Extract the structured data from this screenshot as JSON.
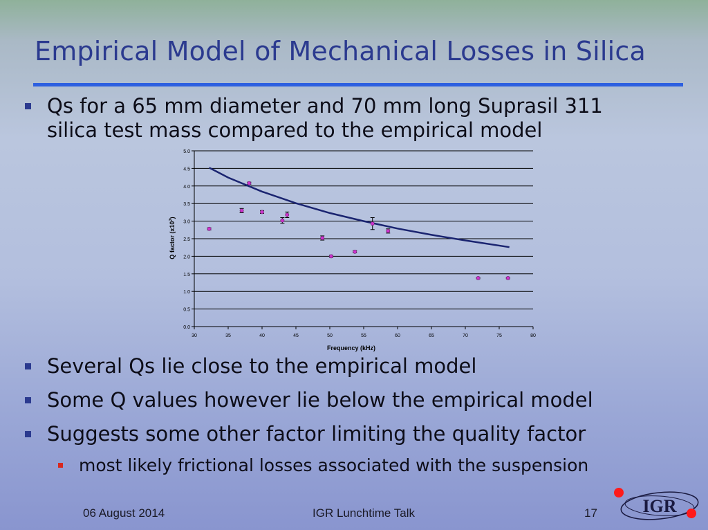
{
  "slide": {
    "title": "Empirical Model of Mechanical Losses in Silica",
    "bullet1": "Qs for a 65 mm diameter and 70 mm long Suprasil 311\nsilica test mass compared to the empirical model",
    "bullets": [
      "Several Qs lie close to the empirical model",
      "Some Q values however lie below the empirical model",
      "Suggests some other factor limiting the quality factor"
    ],
    "subbullet": "most likely frictional losses associated with the suspension"
  },
  "footer": {
    "date": "06 August 2014",
    "talk": "IGR Lunchtime Talk",
    "page": "17",
    "logo_text": "IGR"
  },
  "colors": {
    "title": "#2b3a8f",
    "rule": "#2d5fe0",
    "point": "#cc33cc",
    "curve": "#1a2470",
    "logo_dot": "#ff1a1a"
  },
  "chart_data": {
    "type": "scatter",
    "xlabel": "Frequency (kHz)",
    "ylabel": "Q factor (x10^7)",
    "xlim": [
      30,
      80
    ],
    "ylim": [
      0,
      5
    ],
    "xticks": [
      "30",
      "35",
      "40",
      "45",
      "50",
      "55",
      "60",
      "65",
      "70",
      "75",
      "80"
    ],
    "yticks": [
      "0.0",
      "0.5",
      "1.0",
      "1.5",
      "2.0",
      "2.5",
      "3.0",
      "3.5",
      "4.0",
      "4.5",
      "5.0"
    ],
    "grid": "horizontal",
    "series": [
      {
        "kind": "points",
        "x": [
          32.2,
          37.0,
          38.1,
          40.0,
          43.0,
          43.7,
          48.9,
          50.2,
          53.7,
          56.3,
          58.6,
          71.9,
          76.3
        ],
        "y": [
          2.78,
          3.3,
          4.08,
          3.26,
          3.02,
          3.18,
          2.52,
          2.0,
          2.13,
          2.93,
          2.72,
          1.38,
          1.38
        ],
        "err": [
          0.03,
          0.06,
          0.03,
          0.04,
          0.08,
          0.08,
          0.06,
          0.03,
          0.03,
          0.17,
          0.06,
          0.02,
          0.02
        ]
      },
      {
        "kind": "curve",
        "x": [
          32.2,
          35,
          40,
          45,
          50,
          55,
          60,
          65,
          70,
          76.5
        ],
        "y": [
          4.52,
          4.24,
          3.84,
          3.51,
          3.23,
          3.0,
          2.79,
          2.61,
          2.45,
          2.26
        ]
      }
    ]
  }
}
